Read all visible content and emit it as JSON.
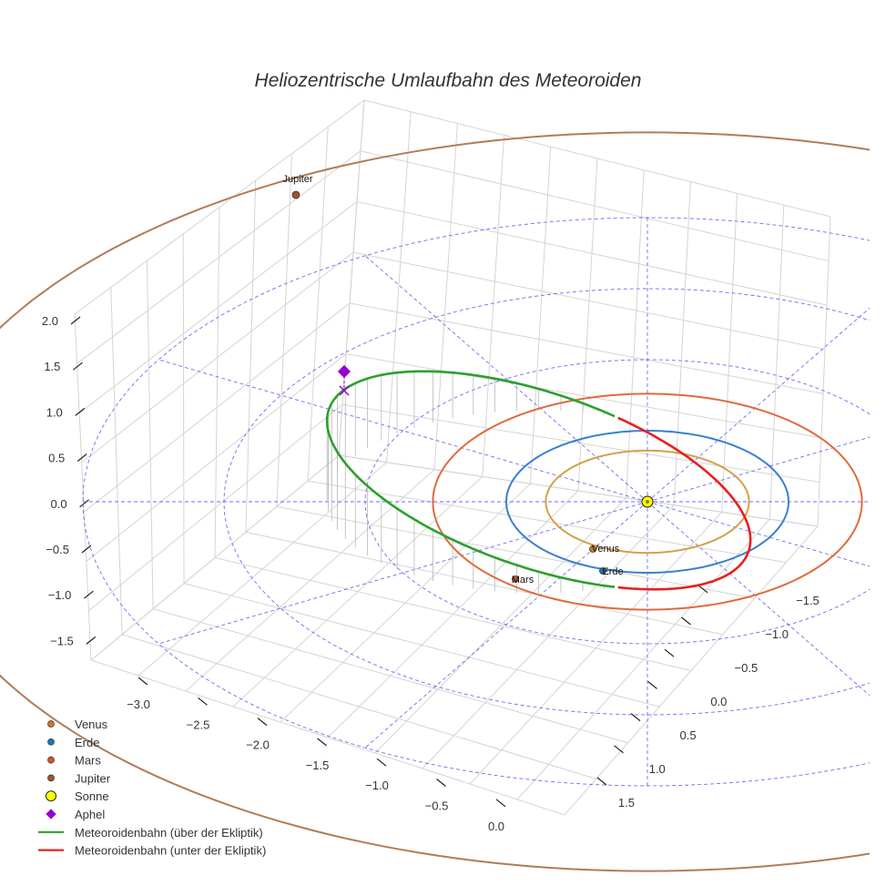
{
  "chart_data": {
    "type": "line3d",
    "title": "Heliozentrische Umlaufbahn des Meteoroiden",
    "z_axis": {
      "ticks": [
        2.0,
        1.5,
        1.0,
        0.5,
        0.0,
        -0.5,
        -1.0,
        -1.5
      ],
      "labels": [
        "2.0",
        "1.5",
        "1.0",
        "0.5",
        "0.0",
        "−0.5",
        "−1.0",
        "−1.5"
      ]
    },
    "x_axis": {
      "ticks": [
        -3.0,
        -2.5,
        -2.0,
        -1.5,
        -1.0,
        -0.5,
        0.0
      ],
      "labels": [
        "−3.0",
        "−2.5",
        "−2.0",
        "−1.5",
        "−1.0",
        "−0.5",
        "0.0"
      ]
    },
    "y_axis": {
      "ticks": [
        -1.5,
        -1.0,
        -0.5,
        0.0,
        0.5,
        1.0,
        1.5
      ],
      "labels": [
        "−1.5",
        "−1.0",
        "−0.5",
        "0.0",
        "0.5",
        "1.0",
        "1.5"
      ]
    },
    "planets": [
      {
        "name": "Venus",
        "orbit_radius_au": 0.72,
        "color": "#d4a04a",
        "marker_color": "#cc7a22",
        "label": "Venus"
      },
      {
        "name": "Erde",
        "orbit_radius_au": 1.0,
        "color": "#3a7fd0",
        "marker_color": "#1f77b4",
        "label": "Erde"
      },
      {
        "name": "Mars",
        "orbit_radius_au": 1.52,
        "color": "#e06a3c",
        "marker_color": "#d35426",
        "label": "Mars"
      },
      {
        "name": "Jupiter",
        "orbit_radius_au": 5.2,
        "color": "#b07c5a",
        "marker_color": "#a0522d",
        "label": "Jupiter"
      }
    ],
    "sun": {
      "label": "Sonne",
      "color": "#ffff00"
    },
    "meteoroid_orbit": {
      "perihelion_au": 0.73,
      "aphelion_au": 2.27,
      "aphelion_height_au": 1.45,
      "above_color": "#2ca02c",
      "below_color": "#e8201e"
    },
    "aphelion_marker": {
      "label": "Aphel",
      "color": "#9400d3"
    },
    "ecliptic_grid": {
      "circle_radii_au": [
        1,
        2,
        3,
        4
      ],
      "spoke_count": 12,
      "color": "#5555ee"
    }
  },
  "legend": {
    "items": [
      {
        "label": "Venus",
        "kind": "dot",
        "color": "#cc7a22"
      },
      {
        "label": "Erde",
        "kind": "dot",
        "color": "#1f77b4"
      },
      {
        "label": "Mars",
        "kind": "dot",
        "color": "#d35426"
      },
      {
        "label": "Jupiter",
        "kind": "dot",
        "color": "#a0522d"
      },
      {
        "label": "Sonne",
        "kind": "sun",
        "color": "#ffff00"
      },
      {
        "label": "Aphel",
        "kind": "diamond",
        "color": "#9400d3"
      },
      {
        "label": "Meteoroidenbahn (über der Ekliptik)",
        "kind": "line",
        "color": "#2ca02c"
      },
      {
        "label": "Meteoroidenbahn (unter der Ekliptik)",
        "kind": "line",
        "color": "#e8201e"
      }
    ]
  }
}
